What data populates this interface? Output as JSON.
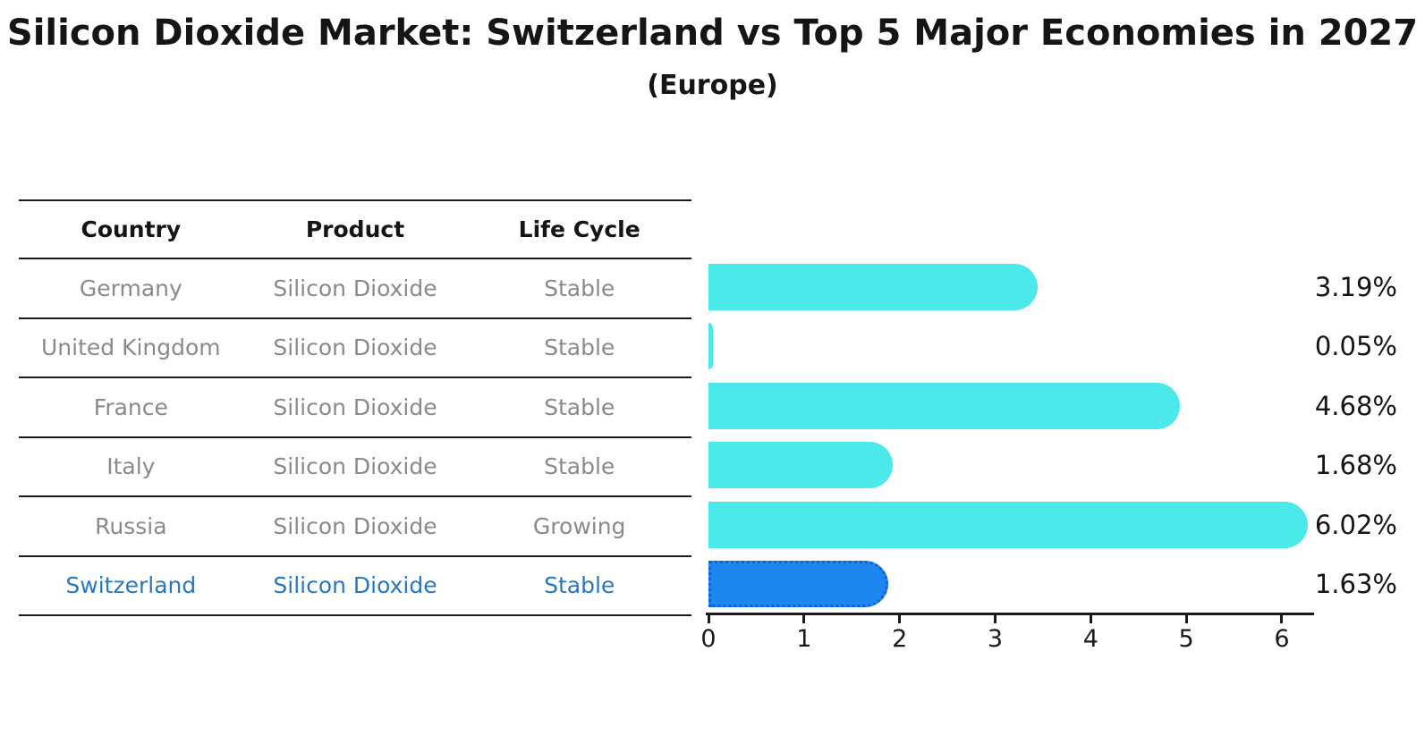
{
  "title": "Silicon Dioxide Market: Switzerland vs Top 5 Major Economies in 2027",
  "subtitle": "(Europe)",
  "table": {
    "headers": [
      "Country",
      "Product",
      "Life Cycle"
    ],
    "rows": [
      {
        "country": "Germany",
        "product": "Silicon Dioxide",
        "life_cycle": "Stable",
        "highlighted": false
      },
      {
        "country": "United Kingdom",
        "product": "Silicon Dioxide",
        "life_cycle": "Stable",
        "highlighted": false
      },
      {
        "country": "France",
        "product": "Silicon Dioxide",
        "life_cycle": "Stable",
        "highlighted": false
      },
      {
        "country": "Italy",
        "product": "Silicon Dioxide",
        "life_cycle": "Stable",
        "highlighted": false
      },
      {
        "country": "Russia",
        "product": "Silicon Dioxide",
        "life_cycle": "Growing",
        "highlighted": false
      },
      {
        "country": "Switzerland",
        "product": "Silicon Dioxide",
        "life_cycle": "Stable",
        "highlighted": true
      }
    ]
  },
  "chart_data": {
    "type": "bar",
    "orientation": "horizontal",
    "categories": [
      "Germany",
      "United Kingdom",
      "France",
      "Italy",
      "Russia",
      "Switzerland"
    ],
    "values": [
      3.19,
      0.05,
      4.68,
      1.68,
      6.02,
      1.63
    ],
    "value_labels": [
      "3.19%",
      "0.05%",
      "4.68%",
      "1.68%",
      "6.02%",
      "1.63%"
    ],
    "x_ticks": [
      "0",
      "1",
      "2",
      "3",
      "4",
      "5",
      "6"
    ],
    "xlim": [
      0,
      6.33
    ],
    "grid": false,
    "legend": false,
    "highlight_category": "Switzerland",
    "bar_color": "#4be9e9",
    "highlight_bar_color": "#1e86f0",
    "highlight_text_color": "#2878be",
    "axis_color": "#1a1a1a",
    "row_text_color": "#8a8a8a"
  }
}
